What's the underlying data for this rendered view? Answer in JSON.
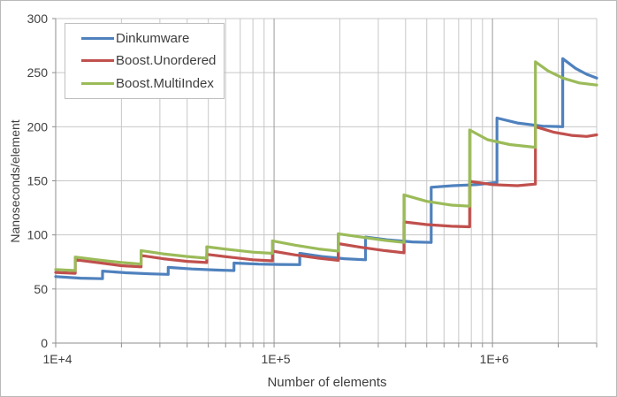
{
  "chart": {
    "y_axis_title": "Nanoseconds/element",
    "x_axis_title": "Number of elements",
    "colors": {
      "grid_minor": "#C7C7C7",
      "grid_major": "#9B9B9B",
      "axis": "#8E8E8E",
      "text": "#3F3F3F",
      "legend_border": "#BFBFBF"
    }
  },
  "chart_data": {
    "type": "line",
    "title": "",
    "xlabel": "Number of elements",
    "ylabel": "Nanoseconds/element",
    "x_scale": "log",
    "xlim": [
      10000,
      3000000
    ],
    "ylim": [
      0,
      300
    ],
    "grid": true,
    "legend_position": "top-left-inside",
    "y_ticks": [
      0,
      50,
      100,
      150,
      200,
      250,
      300
    ],
    "x_major_ticks": [
      {
        "value": 10000,
        "label": "1E+4"
      },
      {
        "value": 100000,
        "label": "1E+5"
      },
      {
        "value": 1000000,
        "label": "1E+6"
      }
    ],
    "x_minor_ticks": [
      20000,
      30000,
      40000,
      50000,
      60000,
      70000,
      80000,
      90000,
      200000,
      300000,
      400000,
      500000,
      600000,
      700000,
      800000,
      900000,
      2000000,
      3000000
    ],
    "series": [
      {
        "name": "Dinkumware",
        "color": "#4F81BD",
        "points": [
          [
            10000,
            61.5
          ],
          [
            13000,
            60
          ],
          [
            16384,
            59.5
          ],
          [
            16384,
            66.5
          ],
          [
            21000,
            65
          ],
          [
            27000,
            64
          ],
          [
            32768,
            63.5
          ],
          [
            32768,
            70
          ],
          [
            42000,
            68.5
          ],
          [
            54000,
            67.5
          ],
          [
            65536,
            67
          ],
          [
            65536,
            74
          ],
          [
            85000,
            73
          ],
          [
            105000,
            72.7
          ],
          [
            131072,
            72.5
          ],
          [
            131072,
            83
          ],
          [
            165000,
            80
          ],
          [
            210000,
            78
          ],
          [
            262144,
            77
          ],
          [
            262144,
            98
          ],
          [
            330000,
            95.5
          ],
          [
            430000,
            93.5
          ],
          [
            524288,
            93
          ],
          [
            524288,
            144
          ],
          [
            660000,
            145.5
          ],
          [
            850000,
            146.5
          ],
          [
            1048576,
            148.5
          ],
          [
            1048576,
            208
          ],
          [
            1300000,
            203.5
          ],
          [
            1700000,
            200.5
          ],
          [
            2097152,
            200
          ],
          [
            2097152,
            263
          ],
          [
            2400000,
            254
          ],
          [
            2700000,
            248.5
          ],
          [
            3000000,
            245
          ]
        ]
      },
      {
        "name": "Boost.Unordered",
        "color": "#C0504D",
        "points": [
          [
            10000,
            65.3
          ],
          [
            12289,
            64.5
          ],
          [
            12289,
            77
          ],
          [
            15500,
            74.5
          ],
          [
            20000,
            71.5
          ],
          [
            24593,
            70.5
          ],
          [
            24593,
            81
          ],
          [
            31000,
            78
          ],
          [
            40000,
            75.5
          ],
          [
            49157,
            74.5
          ],
          [
            49157,
            82
          ],
          [
            62000,
            79.5
          ],
          [
            80000,
            77
          ],
          [
            98317,
            76
          ],
          [
            98317,
            85
          ],
          [
            125000,
            81.5
          ],
          [
            160000,
            78.5
          ],
          [
            196613,
            76.5
          ],
          [
            196613,
            92
          ],
          [
            250000,
            88.5
          ],
          [
            320000,
            85.5
          ],
          [
            393241,
            83.5
          ],
          [
            393241,
            112
          ],
          [
            500000,
            109.5
          ],
          [
            650000,
            108
          ],
          [
            786433,
            107.5
          ],
          [
            786433,
            149.5
          ],
          [
            1000000,
            146.5
          ],
          [
            1300000,
            145.5
          ],
          [
            1572869,
            147
          ],
          [
            1572869,
            200
          ],
          [
            1900000,
            195
          ],
          [
            2300000,
            192
          ],
          [
            2700000,
            191
          ],
          [
            3000000,
            192.5
          ]
        ]
      },
      {
        "name": "Boost.MultiIndex",
        "color": "#9BBB59",
        "points": [
          [
            10000,
            68
          ],
          [
            12289,
            67
          ],
          [
            12289,
            79.5
          ],
          [
            15500,
            77
          ],
          [
            20000,
            74.5
          ],
          [
            24593,
            73
          ],
          [
            24593,
            85.5
          ],
          [
            31000,
            82.5
          ],
          [
            40000,
            80
          ],
          [
            49157,
            78.5
          ],
          [
            49157,
            89
          ],
          [
            62000,
            86.5
          ],
          [
            80000,
            84
          ],
          [
            98317,
            83
          ],
          [
            98317,
            94.5
          ],
          [
            125000,
            90.5
          ],
          [
            160000,
            87
          ],
          [
            196613,
            85
          ],
          [
            196613,
            101
          ],
          [
            250000,
            98
          ],
          [
            320000,
            95
          ],
          [
            393241,
            93
          ],
          [
            393241,
            137
          ],
          [
            500000,
            131
          ],
          [
            650000,
            127.5
          ],
          [
            786433,
            126.5
          ],
          [
            786433,
            197
          ],
          [
            950000,
            188
          ],
          [
            1200000,
            183.5
          ],
          [
            1572869,
            181
          ],
          [
            1572869,
            260
          ],
          [
            1800000,
            251.5
          ],
          [
            2100000,
            245
          ],
          [
            2500000,
            240.5
          ],
          [
            3000000,
            238.5
          ]
        ]
      }
    ]
  }
}
